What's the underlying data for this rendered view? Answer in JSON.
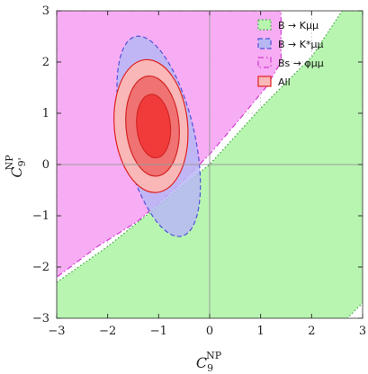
{
  "chart_data": {
    "type": "contour",
    "xlabel": "C",
    "xlabel_sub": "9",
    "xlabel_sup": "NP",
    "ylabel": "C",
    "ylabel_sub": "9'",
    "ylabel_sup": "NP",
    "xlim": [
      -3,
      3
    ],
    "ylim": [
      -3,
      3
    ],
    "xticks": [
      -3,
      -2,
      -1,
      0,
      1,
      2,
      3
    ],
    "yticks": [
      -3,
      -2,
      -1,
      0,
      1,
      2,
      3
    ],
    "grid": true,
    "legend_position": "top-right",
    "legend": [
      {
        "label": "B → Kμμ",
        "fill": "#b8f5b0",
        "stroke": "#3aa63a",
        "dash": "dotted"
      },
      {
        "label": "B → K*μμ",
        "fill": "#b7b7f4",
        "stroke": "#5050d8",
        "dash": "dashed"
      },
      {
        "label": "Bs → φμμ",
        "fill": "#f7a9f2",
        "stroke": "#d23ad2",
        "dash": "dashdot"
      },
      {
        "label": "All",
        "fill": "#f9b7b7",
        "stroke": "#e02020",
        "dash": "solid"
      }
    ],
    "regions": {
      "B_K_mumu": {
        "points": [
          [
            -3,
            -2.3
          ],
          [
            -2,
            -1.6
          ],
          [
            -1,
            -0.8
          ],
          [
            0,
            0
          ],
          [
            1,
            1.1
          ],
          [
            2,
            2.1
          ],
          [
            2.6,
            3
          ],
          [
            3,
            3
          ],
          [
            3,
            -2.7
          ],
          [
            2.7,
            -3
          ],
          [
            -3,
            -3
          ]
        ]
      },
      "Bs_phi_mumu": {
        "points": [
          [
            -3,
            3
          ],
          [
            1.4,
            3
          ],
          [
            1.4,
            2.0
          ],
          [
            1.1,
            1.5
          ],
          [
            0.6,
            0.9
          ],
          [
            0,
            0.2
          ],
          [
            -0.6,
            -0.4
          ],
          [
            -1.4,
            -1.1
          ],
          [
            -2.2,
            -1.6
          ],
          [
            -3,
            -2.2
          ]
        ]
      },
      "B_Kstar_mumu": {
        "cx": -1.0,
        "cy": 0.55,
        "rx": 0.7,
        "ry": 2.0,
        "rotate_deg": -13
      },
      "All": {
        "contours": [
          {
            "level": "outer",
            "cx": -1.15,
            "cy": 0.75,
            "rx": 0.72,
            "ry": 1.3,
            "rotate_deg": -5,
            "fill": "#f9b7b7"
          },
          {
            "level": "middle",
            "cx": -1.12,
            "cy": 0.75,
            "rx": 0.52,
            "ry": 0.98,
            "rotate_deg": -5,
            "fill": "#f07272"
          },
          {
            "level": "inner",
            "cx": -1.1,
            "cy": 0.75,
            "rx": 0.33,
            "ry": 0.62,
            "rotate_deg": -5,
            "fill": "#f13b3b"
          }
        ]
      }
    }
  }
}
